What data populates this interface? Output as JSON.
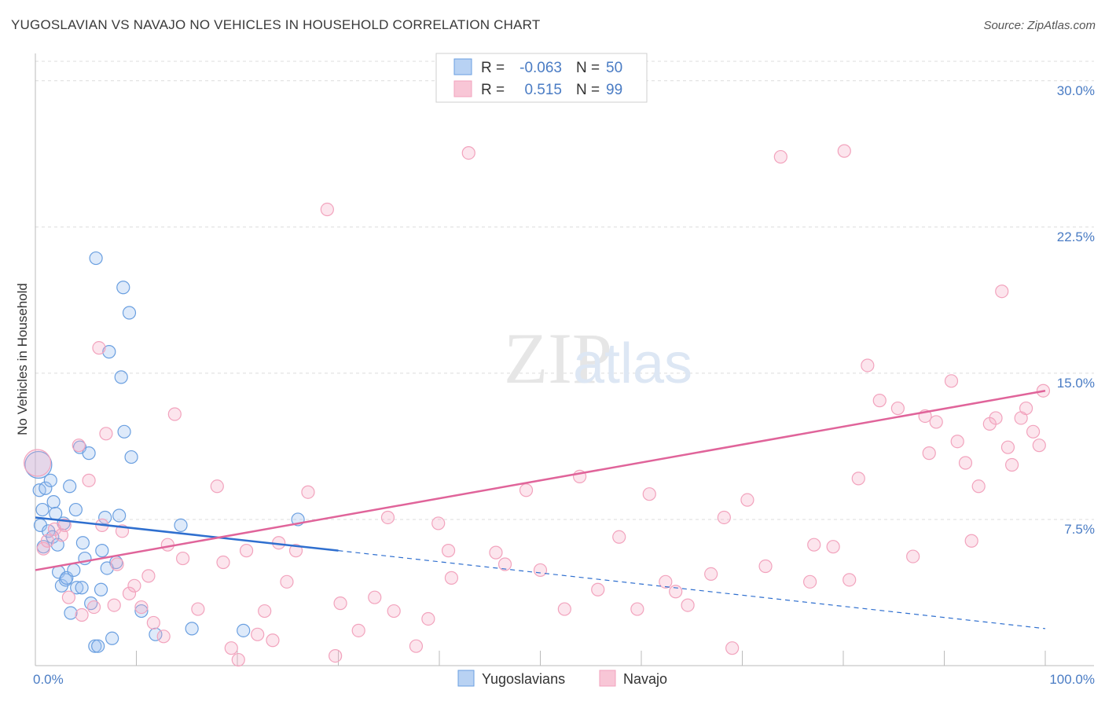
{
  "title": "YUGOSLAVIAN VS NAVAJO NO VEHICLES IN HOUSEHOLD CORRELATION CHART",
  "source": "Source: ZipAtlas.com",
  "watermark": {
    "zip": "ZIP",
    "atlas": "atlas"
  },
  "chart_data": {
    "type": "scatter",
    "title": "YUGOSLAVIAN VS NAVAJO NO VEHICLES IN HOUSEHOLD CORRELATION CHART",
    "xlabel": "",
    "ylabel": "No Vehicles in Household",
    "xlim": [
      0,
      100
    ],
    "ylim": [
      0,
      31
    ],
    "y_ticks": [
      7.5,
      15.0,
      22.5,
      30.0
    ],
    "y_tick_labels": [
      "7.5%",
      "15.0%",
      "22.5%",
      "30.0%"
    ],
    "x_tick_labels": [
      "0.0%",
      "100.0%"
    ],
    "x_minor_ticks": [
      10,
      20,
      30,
      40,
      50,
      60,
      70,
      80,
      90,
      100
    ],
    "grid": true,
    "legend_position": "top-center",
    "stats": [
      {
        "series": "Yugoslavians",
        "r_label": "R =",
        "r": "-0.063",
        "n_label": "N =",
        "n": "50"
      },
      {
        "series": "Navajo",
        "r_label": "R =",
        "r": "0.515",
        "n_label": "N =",
        "n": "99"
      }
    ],
    "series": [
      {
        "name": "Yugoslavians",
        "color": "#6a9fe0",
        "line_color": "#2f6fcf",
        "trend": {
          "solid": [
            [
              0,
              7.6
            ],
            [
              30,
              5.9
            ]
          ],
          "dashed": [
            [
              30,
              5.9
            ],
            [
              100,
              1.9
            ]
          ]
        },
        "points": [
          [
            0.3,
            10.3
          ],
          [
            0.4,
            9.0
          ],
          [
            0.5,
            7.2
          ],
          [
            0.7,
            8.0
          ],
          [
            0.8,
            6.1
          ],
          [
            1.0,
            9.1
          ],
          [
            1.3,
            6.9
          ],
          [
            1.5,
            9.5
          ],
          [
            1.7,
            6.6
          ],
          [
            1.8,
            8.4
          ],
          [
            2.0,
            7.8
          ],
          [
            2.2,
            6.2
          ],
          [
            2.3,
            4.8
          ],
          [
            2.6,
            4.1
          ],
          [
            2.8,
            7.3
          ],
          [
            3.0,
            4.4
          ],
          [
            3.1,
            4.5
          ],
          [
            3.4,
            9.2
          ],
          [
            3.5,
            2.7
          ],
          [
            3.8,
            4.9
          ],
          [
            4.0,
            8.0
          ],
          [
            4.1,
            4.0
          ],
          [
            4.4,
            11.2
          ],
          [
            4.6,
            4.0
          ],
          [
            4.7,
            6.3
          ],
          [
            4.9,
            5.5
          ],
          [
            5.3,
            10.9
          ],
          [
            5.5,
            3.2
          ],
          [
            5.9,
            1.0
          ],
          [
            6.2,
            1.0
          ],
          [
            6.5,
            3.9
          ],
          [
            6.6,
            5.9
          ],
          [
            6.9,
            7.6
          ],
          [
            7.1,
            5.0
          ],
          [
            7.3,
            16.1
          ],
          [
            7.6,
            1.4
          ],
          [
            8.0,
            5.3
          ],
          [
            8.3,
            7.7
          ],
          [
            8.5,
            14.8
          ],
          [
            8.7,
            19.4
          ],
          [
            8.8,
            12.0
          ],
          [
            9.3,
            18.1
          ],
          [
            9.5,
            10.7
          ],
          [
            10.5,
            2.8
          ],
          [
            11.9,
            1.6
          ],
          [
            14.4,
            7.2
          ],
          [
            15.5,
            1.9
          ],
          [
            20.6,
            1.8
          ],
          [
            26.0,
            7.5
          ],
          [
            6.0,
            20.9
          ]
        ]
      },
      {
        "name": "Navajo",
        "color": "#f2a3bd",
        "line_color": "#e0649a",
        "trend": {
          "solid": [
            [
              0,
              4.9
            ],
            [
              100,
              14.1
            ]
          ]
        },
        "points": [
          [
            0.2,
            10.4
          ],
          [
            0.8,
            6.0
          ],
          [
            1.2,
            6.4
          ],
          [
            1.9,
            7.0
          ],
          [
            2.6,
            6.7
          ],
          [
            2.9,
            7.2
          ],
          [
            3.3,
            3.5
          ],
          [
            4.3,
            11.3
          ],
          [
            4.6,
            2.6
          ],
          [
            5.3,
            9.5
          ],
          [
            5.8,
            3.0
          ],
          [
            6.3,
            16.3
          ],
          [
            6.6,
            7.2
          ],
          [
            7.0,
            11.9
          ],
          [
            7.8,
            3.1
          ],
          [
            8.1,
            5.2
          ],
          [
            8.6,
            6.9
          ],
          [
            9.3,
            3.7
          ],
          [
            9.8,
            4.1
          ],
          [
            10.5,
            3.0
          ],
          [
            11.2,
            4.6
          ],
          [
            11.7,
            2.2
          ],
          [
            12.7,
            1.5
          ],
          [
            13.1,
            6.2
          ],
          [
            13.8,
            12.9
          ],
          [
            14.6,
            5.5
          ],
          [
            16.1,
            2.9
          ],
          [
            18.0,
            9.2
          ],
          [
            18.6,
            5.3
          ],
          [
            19.4,
            0.9
          ],
          [
            20.1,
            0.3
          ],
          [
            20.9,
            5.9
          ],
          [
            22.0,
            1.6
          ],
          [
            22.7,
            2.8
          ],
          [
            23.5,
            1.3
          ],
          [
            24.1,
            6.3
          ],
          [
            24.9,
            4.3
          ],
          [
            25.8,
            5.9
          ],
          [
            27.0,
            8.9
          ],
          [
            29.7,
            0.5
          ],
          [
            30.2,
            3.2
          ],
          [
            32.0,
            1.8
          ],
          [
            33.6,
            3.5
          ],
          [
            34.9,
            7.6
          ],
          [
            35.5,
            2.8
          ],
          [
            37.7,
            1.0
          ],
          [
            38.9,
            2.4
          ],
          [
            39.9,
            7.3
          ],
          [
            40.9,
            5.9
          ],
          [
            41.2,
            4.5
          ],
          [
            42.9,
            26.3
          ],
          [
            45.6,
            5.8
          ],
          [
            46.5,
            5.2
          ],
          [
            48.6,
            9.0
          ],
          [
            50.0,
            4.9
          ],
          [
            52.4,
            2.9
          ],
          [
            53.9,
            9.7
          ],
          [
            55.7,
            3.9
          ],
          [
            57.8,
            6.6
          ],
          [
            59.6,
            2.9
          ],
          [
            60.8,
            8.8
          ],
          [
            62.4,
            4.3
          ],
          [
            63.4,
            3.8
          ],
          [
            64.6,
            3.1
          ],
          [
            66.9,
            4.7
          ],
          [
            68.2,
            7.6
          ],
          [
            69.0,
            0.9
          ],
          [
            70.5,
            8.5
          ],
          [
            72.3,
            5.1
          ],
          [
            73.8,
            26.1
          ],
          [
            76.7,
            4.3
          ],
          [
            77.1,
            6.2
          ],
          [
            79.0,
            6.1
          ],
          [
            80.6,
            4.4
          ],
          [
            81.5,
            9.6
          ],
          [
            82.4,
            15.4
          ],
          [
            83.6,
            13.6
          ],
          [
            85.4,
            13.2
          ],
          [
            86.9,
            5.6
          ],
          [
            88.1,
            12.8
          ],
          [
            88.5,
            10.9
          ],
          [
            89.2,
            12.5
          ],
          [
            90.7,
            14.6
          ],
          [
            91.3,
            11.5
          ],
          [
            92.1,
            10.4
          ],
          [
            92.7,
            6.4
          ],
          [
            93.4,
            9.2
          ],
          [
            94.5,
            12.4
          ],
          [
            95.1,
            12.7
          ],
          [
            95.7,
            19.2
          ],
          [
            96.3,
            11.2
          ],
          [
            96.7,
            10.3
          ],
          [
            97.6,
            12.7
          ],
          [
            98.1,
            13.2
          ],
          [
            98.8,
            12.0
          ],
          [
            99.4,
            11.3
          ],
          [
            99.8,
            14.1
          ],
          [
            28.9,
            23.4
          ],
          [
            80.1,
            26.4
          ]
        ]
      }
    ]
  },
  "legend": {
    "series": [
      {
        "name": "Yugoslavians",
        "swatch": "#b8d2f3",
        "border": "#6a9fe0"
      },
      {
        "name": "Navajo",
        "swatch": "#f8c6d6",
        "border": "#f2a3bd"
      }
    ]
  }
}
